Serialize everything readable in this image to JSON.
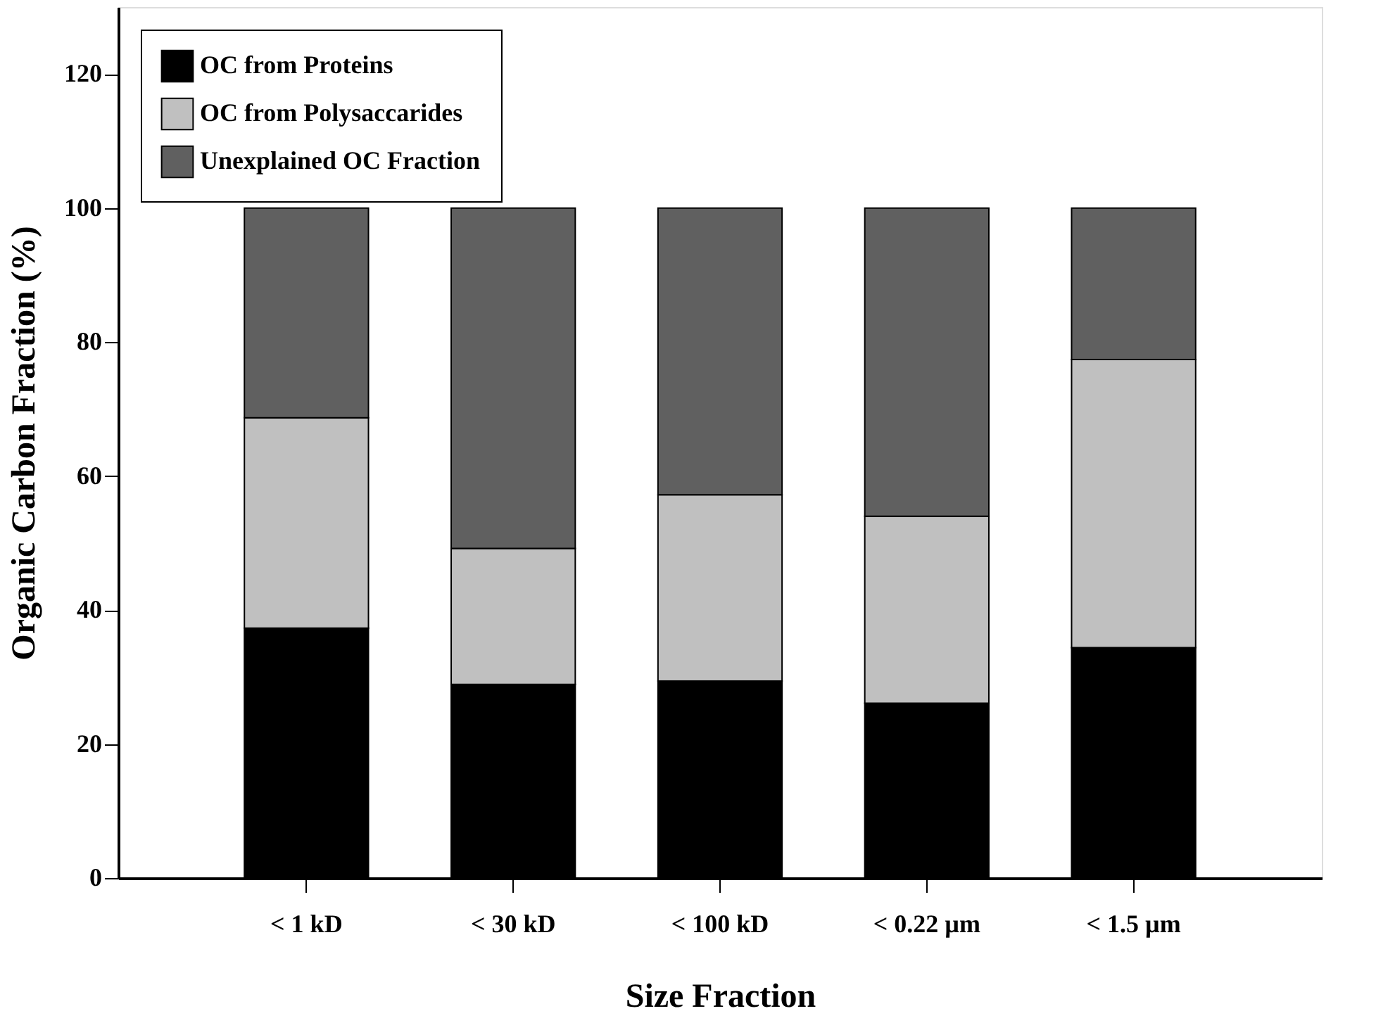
{
  "chart_data": {
    "type": "bar",
    "stacked": true,
    "xlabel": "Size Fraction",
    "ylabel": "Organic Carbon Fraction (%)",
    "categories": [
      "< 1 kD",
      "< 30 kD",
      "< 100 kD",
      "< 0.22 µm",
      "< 1.5 µm"
    ],
    "series": [
      {
        "name": "OC from Proteins",
        "color": "#000000",
        "values": [
          37.3,
          28.9,
          29.4,
          26.1,
          34.4
        ]
      },
      {
        "name": "OC from Polysaccarides",
        "color": "#c0c0c0",
        "values": [
          31.4,
          20.3,
          27.8,
          27.9,
          43.0
        ]
      },
      {
        "name": "Unexplained OC Fraction",
        "color": "#606060",
        "values": [
          31.3,
          50.8,
          42.8,
          46.0,
          22.6
        ]
      }
    ],
    "ylim": [
      0,
      130
    ],
    "yticks": [
      0,
      20,
      40,
      60,
      80,
      100,
      120
    ],
    "grid": false,
    "legend": "top left"
  }
}
